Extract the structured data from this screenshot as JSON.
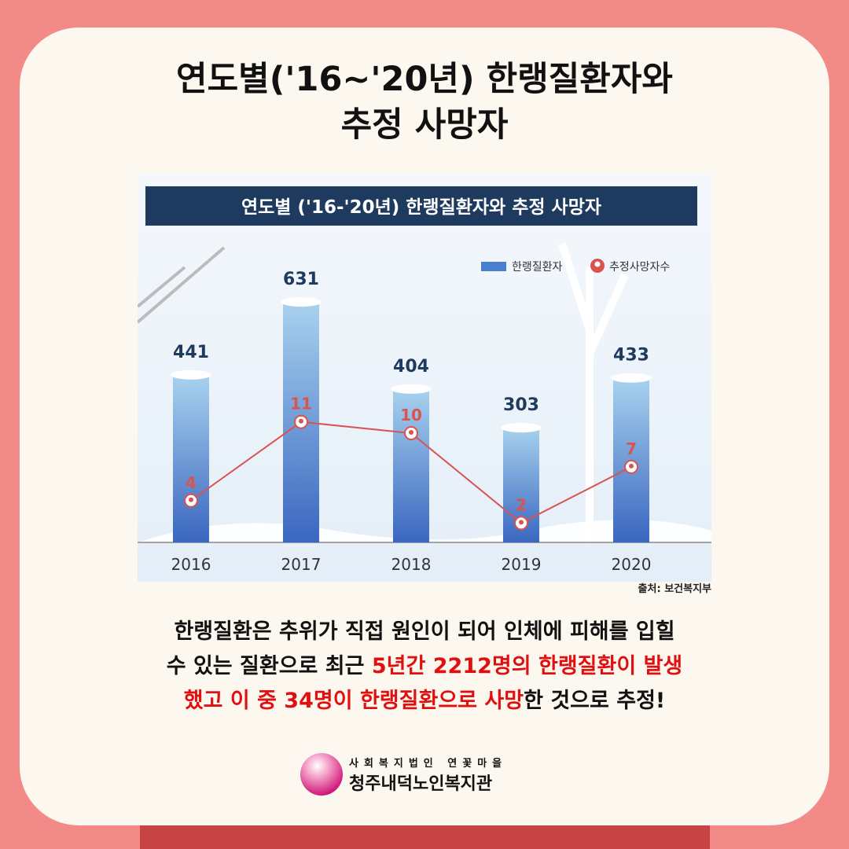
{
  "title_line1": "연도별('16~'20년) 한랭질환자와",
  "title_line2": "추정 사망자",
  "chart_data": {
    "type": "bar+line",
    "title": "연도별 ('16-'20년) 한랭질환자와 추정 사망자",
    "categories": [
      "2016",
      "2017",
      "2018",
      "2019",
      "2020"
    ],
    "series": [
      {
        "name": "한랭질환자",
        "type": "bar",
        "values": [
          441,
          631,
          404,
          303,
          433
        ]
      },
      {
        "name": "추정사망자수",
        "type": "line",
        "values": [
          4,
          11,
          10,
          2,
          7
        ]
      }
    ],
    "legend": "top-right",
    "colors": {
      "bar": "#4a7fcf",
      "line": "#d9534f",
      "title_bg": "#1f3a5f"
    }
  },
  "source": "출처: 보건복지부",
  "body": {
    "l1": "한랭질환은 추위가 직접 원인이 되어 인체에 피해를 입힐",
    "l2a": "수 있는 질환으로 최근 ",
    "l2b": "5년간 2212명의 한랭질환이 발생",
    "l3a": "했고 이 중 34명이 한랭질환으로 사망",
    "l3b": "한 것으로 추정!"
  },
  "logo": {
    "sub": "사회복지법인 연꽃마을",
    "main": "청주내덕노인복지관"
  }
}
